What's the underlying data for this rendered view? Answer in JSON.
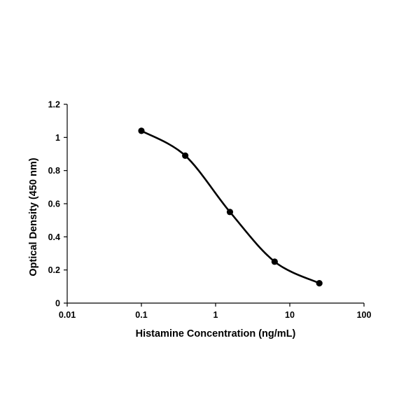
{
  "chart_data": {
    "type": "scatter",
    "title": "",
    "xlabel": "Histamine Concentration (ng/mL)",
    "ylabel": "Optical Density (450 nm)",
    "x_scale": "log",
    "xlim": [
      0.01,
      100
    ],
    "ylim": [
      0,
      1.2
    ],
    "x_ticks": [
      "0.01",
      "0.1",
      "1",
      "10",
      "100"
    ],
    "y_ticks": [
      "0",
      "0.2",
      "0.4",
      "0.6",
      "0.8",
      "1",
      "1.2"
    ],
    "grid": false,
    "legend": "none",
    "series": [
      {
        "line": "smooth",
        "marker": "circle",
        "color": "#000000",
        "x": [
          0.1,
          0.39,
          1.56,
          6.25,
          25
        ],
        "y": [
          1.04,
          0.89,
          0.55,
          0.25,
          0.12
        ]
      }
    ]
  }
}
